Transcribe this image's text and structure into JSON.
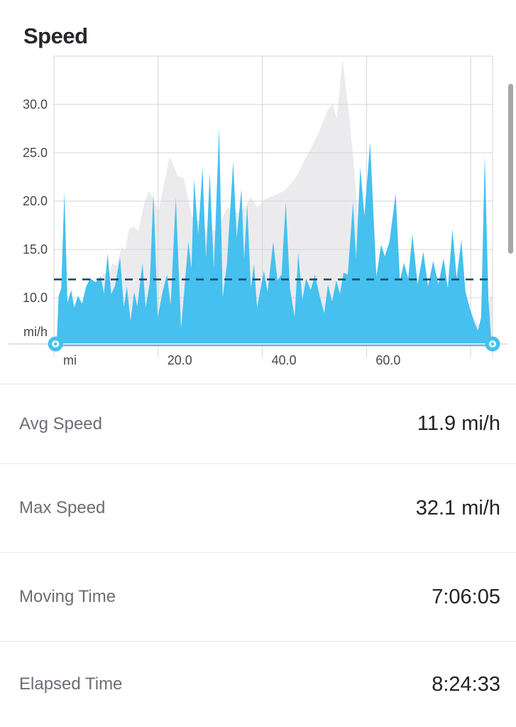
{
  "page": {
    "title": "Speed"
  },
  "colors": {
    "speed_fill": "#45c0ef",
    "profile_fill": "#ebebed",
    "grid": "#d4d4d7",
    "axis_label": "#47474f",
    "avg_line": "#1d4a63",
    "slider_track": "#e3e3e5",
    "handle_blue": "#45c0ef",
    "scrollbar": "#a7a7aa"
  },
  "chart_data": {
    "type": "area",
    "title": "Speed",
    "xlabel": "mi",
    "ylabel": "mi/h",
    "x_axis": {
      "min": 0,
      "max": 84.2,
      "ticks": [
        {
          "value": 0,
          "label": "mi"
        },
        {
          "value": 20,
          "label": "20.0"
        },
        {
          "value": 40,
          "label": "40.0"
        },
        {
          "value": 60,
          "label": "60.0"
        },
        {
          "value": 80,
          "label": ""
        }
      ]
    },
    "y_axis": {
      "min": 5,
      "max": 35,
      "unit_label": "mi/h",
      "ticks": [
        {
          "value": 30,
          "label": "30.0"
        },
        {
          "value": 25,
          "label": "25.0"
        },
        {
          "value": 20,
          "label": "20.0"
        },
        {
          "value": 15,
          "label": "15.0"
        },
        {
          "value": 10,
          "label": "10.0"
        }
      ]
    },
    "avg_line": {
      "value": 11.9,
      "style": "dashed"
    },
    "range_slider": {
      "left_mi": 0.3,
      "right_mi": 84.2
    },
    "series": [
      {
        "name": "background-profile",
        "color": "#ebebed",
        "points": [
          [
            2.6,
            5.0
          ],
          [
            3.5,
            6.2
          ],
          [
            5.0,
            7.6
          ],
          [
            6.3,
            9.3
          ],
          [
            8.0,
            10.8
          ],
          [
            9.6,
            12.6
          ],
          [
            10.5,
            12.3
          ],
          [
            11.2,
            13.6
          ],
          [
            12.0,
            13.3
          ],
          [
            13.0,
            15.3
          ],
          [
            13.7,
            14.9
          ],
          [
            14.4,
            17.1
          ],
          [
            15.3,
            17.4
          ],
          [
            16.2,
            16.9
          ],
          [
            17.4,
            20.0
          ],
          [
            18.3,
            21.1
          ],
          [
            20.1,
            19.0
          ],
          [
            22.2,
            24.6
          ],
          [
            23.8,
            22.6
          ],
          [
            24.9,
            22.4
          ],
          [
            26.5,
            18.4
          ],
          [
            27.9,
            17.9
          ],
          [
            29.6,
            16.6
          ],
          [
            31.5,
            17.3
          ],
          [
            33.3,
            19.4
          ],
          [
            34.5,
            18.9
          ],
          [
            35.6,
            18.8
          ],
          [
            36.9,
            19.6
          ],
          [
            37.8,
            20.4
          ],
          [
            39.1,
            19.3
          ],
          [
            40.5,
            20.2
          ],
          [
            41.9,
            20.5
          ],
          [
            43.2,
            20.8
          ],
          [
            44.5,
            21.2
          ],
          [
            46.4,
            22.4
          ],
          [
            48.0,
            24.1
          ],
          [
            49.5,
            25.6
          ],
          [
            51.0,
            27.3
          ],
          [
            52.5,
            29.4
          ],
          [
            53.5,
            30.0
          ],
          [
            54.3,
            28.5
          ],
          [
            55.4,
            34.7
          ],
          [
            56.7,
            28.7
          ],
          [
            57.7,
            23.0
          ],
          [
            58.6,
            16.2
          ],
          [
            59.5,
            10.8
          ],
          [
            60.5,
            9.2
          ],
          [
            62.0,
            8.5
          ],
          [
            64.0,
            8.7
          ],
          [
            66.0,
            8.2
          ],
          [
            68.0,
            8.5
          ],
          [
            70.0,
            8.0
          ],
          [
            72.0,
            8.3
          ],
          [
            74.0,
            7.9
          ],
          [
            76.0,
            8.2
          ],
          [
            78.0,
            8.7
          ],
          [
            79.3,
            9.3
          ],
          [
            80.6,
            7.9
          ],
          [
            81.6,
            7.2
          ],
          [
            82.2,
            8.1
          ],
          [
            82.9,
            7.3
          ],
          [
            83.6,
            9.8
          ],
          [
            84.2,
            10.3
          ]
        ]
      },
      {
        "name": "speed",
        "color": "#45c0ef",
        "points": [
          [
            0.5,
            5.0
          ],
          [
            0.9,
            10.2
          ],
          [
            1.4,
            11.0
          ],
          [
            2.0,
            21.0
          ],
          [
            2.6,
            9.5
          ],
          [
            3.3,
            10.8
          ],
          [
            3.9,
            9.0
          ],
          [
            4.6,
            10.2
          ],
          [
            5.4,
            9.4
          ],
          [
            6.2,
            11.2
          ],
          [
            7.0,
            12.0
          ],
          [
            8.0,
            11.6
          ],
          [
            9.0,
            12.2
          ],
          [
            9.6,
            10.4
          ],
          [
            10.3,
            14.6
          ],
          [
            11.0,
            10.4
          ],
          [
            11.7,
            11.2
          ],
          [
            12.7,
            14.2
          ],
          [
            13.4,
            9.0
          ],
          [
            14.0,
            11.2
          ],
          [
            14.7,
            7.6
          ],
          [
            15.4,
            10.6
          ],
          [
            16.0,
            9.1
          ],
          [
            17.0,
            13.6
          ],
          [
            17.6,
            9.0
          ],
          [
            18.4,
            11.5
          ],
          [
            19.1,
            21.0
          ],
          [
            19.9,
            7.9
          ],
          [
            20.8,
            10.5
          ],
          [
            21.7,
            12.4
          ],
          [
            22.4,
            9.2
          ],
          [
            23.4,
            20.4
          ],
          [
            24.4,
            6.8
          ],
          [
            25.8,
            15.8
          ],
          [
            26.4,
            13.0
          ],
          [
            26.9,
            22.3
          ],
          [
            27.7,
            16.5
          ],
          [
            28.5,
            23.5
          ],
          [
            29.2,
            14.1
          ],
          [
            29.9,
            22.9
          ],
          [
            30.7,
            13.0
          ],
          [
            31.7,
            27.6
          ],
          [
            32.4,
            10.0
          ],
          [
            33.2,
            13.5
          ],
          [
            34.4,
            24.1
          ],
          [
            35.1,
            16.2
          ],
          [
            36.0,
            21.3
          ],
          [
            36.5,
            14.0
          ],
          [
            37.1,
            19.6
          ],
          [
            37.8,
            11.0
          ],
          [
            38.4,
            13.5
          ],
          [
            39.0,
            9.0
          ],
          [
            40.3,
            12.8
          ],
          [
            41.0,
            10.6
          ],
          [
            42.1,
            15.8
          ],
          [
            42.9,
            11.8
          ],
          [
            43.7,
            12.4
          ],
          [
            44.5,
            19.9
          ],
          [
            45.3,
            11.0
          ],
          [
            46.2,
            8.0
          ],
          [
            46.9,
            14.6
          ],
          [
            47.7,
            9.8
          ],
          [
            48.4,
            12.0
          ],
          [
            49.3,
            10.8
          ],
          [
            50.1,
            12.4
          ],
          [
            51.0,
            10.2
          ],
          [
            51.9,
            8.4
          ],
          [
            52.6,
            11.4
          ],
          [
            53.4,
            9.6
          ],
          [
            54.2,
            11.8
          ],
          [
            54.9,
            10.4
          ],
          [
            55.6,
            12.6
          ],
          [
            56.4,
            12.4
          ],
          [
            57.4,
            19.9
          ],
          [
            58.0,
            14.0
          ],
          [
            58.8,
            23.5
          ],
          [
            59.6,
            18.5
          ],
          [
            60.7,
            26.1
          ],
          [
            61.9,
            12.2
          ],
          [
            62.8,
            15.5
          ],
          [
            63.5,
            14.3
          ],
          [
            64.4,
            15.8
          ],
          [
            65.6,
            20.8
          ],
          [
            66.4,
            11.8
          ],
          [
            67.2,
            13.6
          ],
          [
            68.0,
            12.0
          ],
          [
            68.8,
            16.6
          ],
          [
            69.8,
            11.4
          ],
          [
            70.9,
            14.8
          ],
          [
            71.8,
            11.2
          ],
          [
            72.8,
            13.8
          ],
          [
            73.8,
            11.4
          ],
          [
            74.8,
            14.1
          ],
          [
            75.6,
            11.0
          ],
          [
            76.5,
            17.1
          ],
          [
            77.3,
            12.0
          ],
          [
            78.2,
            16.0
          ],
          [
            79.0,
            10.6
          ],
          [
            79.8,
            9.0
          ],
          [
            80.6,
            7.6
          ],
          [
            81.4,
            6.6
          ],
          [
            82.0,
            8.0
          ],
          [
            82.7,
            24.8
          ],
          [
            83.4,
            10.0
          ],
          [
            84.0,
            5.2
          ]
        ]
      }
    ]
  },
  "stats": {
    "rows": [
      {
        "label": "Avg Speed",
        "value": "11.9 mi/h"
      },
      {
        "label": "Max Speed",
        "value": "32.1 mi/h"
      },
      {
        "label": "Moving Time",
        "value": "7:06:05"
      },
      {
        "label": "Elapsed Time",
        "value": "8:24:33"
      }
    ]
  }
}
